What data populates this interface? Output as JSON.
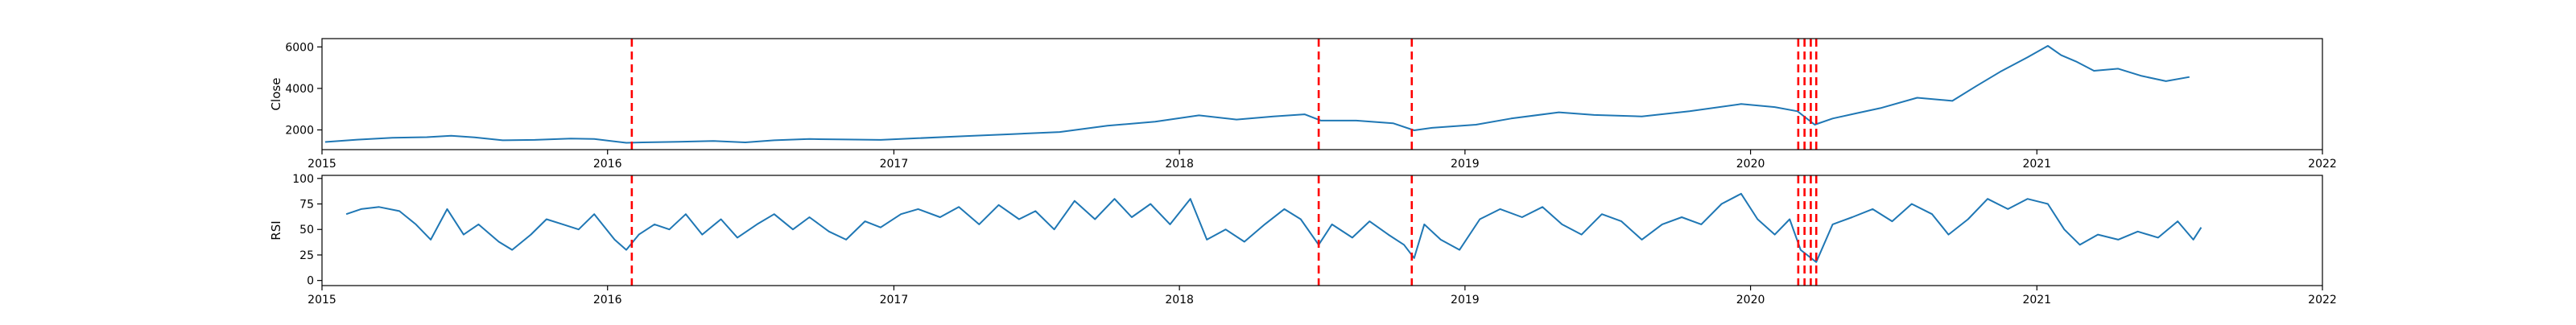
{
  "chart_data": [
    {
      "type": "line",
      "ylabel": "Close",
      "xlim": [
        "2015-01-01",
        "2022-01-01"
      ],
      "ylim": [
        1050,
        6400
      ],
      "x_ticks": [
        "2015-01-01",
        "2016-01-01",
        "2017-01-01",
        "2018-01-01",
        "2019-01-01",
        "2020-01-01",
        "2021-01-01",
        "2022-01-01"
      ],
      "x_tick_labels": [
        "2015",
        "2016",
        "2017",
        "2018",
        "2019",
        "2020",
        "2021",
        "2022"
      ],
      "y_ticks": [
        2000,
        4000,
        6000
      ],
      "y_tick_labels": [
        "2000",
        "4000",
        "6000"
      ],
      "grid": false,
      "series": [
        {
          "color": "#1f77b4",
          "points": [
            [
              "2015-01-05",
              1420
            ],
            [
              "2015-02-15",
              1530
            ],
            [
              "2015-04-01",
              1620
            ],
            [
              "2015-05-15",
              1650
            ],
            [
              "2015-06-15",
              1720
            ],
            [
              "2015-07-15",
              1640
            ],
            [
              "2015-08-20",
              1500
            ],
            [
              "2015-09-30",
              1520
            ],
            [
              "2015-11-15",
              1580
            ],
            [
              "2015-12-15",
              1560
            ],
            [
              "2016-01-25",
              1380
            ],
            [
              "2016-02-15",
              1400
            ],
            [
              "2016-04-01",
              1430
            ],
            [
              "2016-05-15",
              1470
            ],
            [
              "2016-06-25",
              1400
            ],
            [
              "2016-08-01",
              1500
            ],
            [
              "2016-09-15",
              1560
            ],
            [
              "2016-11-01",
              1540
            ],
            [
              "2016-12-15",
              1520
            ],
            [
              "2017-02-01",
              1600
            ],
            [
              "2017-04-01",
              1700
            ],
            [
              "2017-06-01",
              1800
            ],
            [
              "2017-08-01",
              1900
            ],
            [
              "2017-10-01",
              2200
            ],
            [
              "2017-12-01",
              2400
            ],
            [
              "2018-01-26",
              2700
            ],
            [
              "2018-03-15",
              2500
            ],
            [
              "2018-05-01",
              2650
            ],
            [
              "2018-06-10",
              2750
            ],
            [
              "2018-07-01",
              2450
            ],
            [
              "2018-08-15",
              2450
            ],
            [
              "2018-10-01",
              2320
            ],
            [
              "2018-10-28",
              1980
            ],
            [
              "2018-11-20",
              2100
            ],
            [
              "2019-01-15",
              2250
            ],
            [
              "2019-03-01",
              2550
            ],
            [
              "2019-05-01",
              2850
            ],
            [
              "2019-06-15",
              2720
            ],
            [
              "2019-08-15",
              2650
            ],
            [
              "2019-10-15",
              2900
            ],
            [
              "2019-12-20",
              3250
            ],
            [
              "2020-02-01",
              3100
            ],
            [
              "2020-03-01",
              2900
            ],
            [
              "2020-03-23",
              2250
            ],
            [
              "2020-04-15",
              2550
            ],
            [
              "2020-05-15",
              2800
            ],
            [
              "2020-06-15",
              3050
            ],
            [
              "2020-08-01",
              3550
            ],
            [
              "2020-09-15",
              3400
            ],
            [
              "2020-10-15",
              4100
            ],
            [
              "2020-11-15",
              4800
            ],
            [
              "2020-12-20",
              5500
            ],
            [
              "2021-01-15",
              6050
            ],
            [
              "2021-02-01",
              5600
            ],
            [
              "2021-02-20",
              5300
            ],
            [
              "2021-03-15",
              4850
            ],
            [
              "2021-04-15",
              4950
            ],
            [
              "2021-05-15",
              4600
            ],
            [
              "2021-06-15",
              4350
            ],
            [
              "2021-07-15",
              4550
            ]
          ]
        }
      ],
      "vlines": {
        "color": "#ff0000",
        "dates": [
          "2016-02-01",
          "2018-06-28",
          "2018-10-25",
          "2020-03-02",
          "2020-03-10",
          "2020-03-18",
          "2020-03-25"
        ]
      }
    },
    {
      "type": "line",
      "ylabel": "RSI",
      "xlim": [
        "2015-01-01",
        "2022-01-01"
      ],
      "ylim": [
        -5,
        103
      ],
      "x_ticks": [
        "2015-01-01",
        "2016-01-01",
        "2017-01-01",
        "2018-01-01",
        "2019-01-01",
        "2020-01-01",
        "2021-01-01",
        "2022-01-01"
      ],
      "x_tick_labels": [
        "2015",
        "2016",
        "2017",
        "2018",
        "2019",
        "2020",
        "2021",
        "2022"
      ],
      "y_ticks": [
        0,
        25,
        50,
        75,
        100
      ],
      "y_tick_labels": [
        "0",
        "25",
        "50",
        "75",
        "100"
      ],
      "grid": false,
      "series": [
        {
          "color": "#1f77b4",
          "points": [
            [
              "2015-02-01",
              65
            ],
            [
              "2015-02-20",
              70
            ],
            [
              "2015-03-15",
              72
            ],
            [
              "2015-04-10",
              68
            ],
            [
              "2015-05-01",
              55
            ],
            [
              "2015-05-20",
              40
            ],
            [
              "2015-06-10",
              70
            ],
            [
              "2015-07-01",
              45
            ],
            [
              "2015-07-20",
              55
            ],
            [
              "2015-08-15",
              38
            ],
            [
              "2015-09-01",
              30
            ],
            [
              "2015-09-25",
              45
            ],
            [
              "2015-10-15",
              60
            ],
            [
              "2015-11-05",
              55
            ],
            [
              "2015-11-25",
              50
            ],
            [
              "2015-12-15",
              65
            ],
            [
              "2016-01-10",
              40
            ],
            [
              "2016-01-25",
              30
            ],
            [
              "2016-02-10",
              45
            ],
            [
              "2016-03-01",
              55
            ],
            [
              "2016-03-20",
              50
            ],
            [
              "2016-04-10",
              65
            ],
            [
              "2016-05-01",
              45
            ],
            [
              "2016-05-25",
              60
            ],
            [
              "2016-06-15",
              42
            ],
            [
              "2016-07-10",
              55
            ],
            [
              "2016-08-01",
              65
            ],
            [
              "2016-08-25",
              50
            ],
            [
              "2016-09-15",
              62
            ],
            [
              "2016-10-10",
              48
            ],
            [
              "2016-11-01",
              40
            ],
            [
              "2016-11-25",
              58
            ],
            [
              "2016-12-15",
              52
            ],
            [
              "2017-01-10",
              65
            ],
            [
              "2017-02-01",
              70
            ],
            [
              "2017-03-01",
              62
            ],
            [
              "2017-03-25",
              72
            ],
            [
              "2017-04-20",
              55
            ],
            [
              "2017-05-15",
              74
            ],
            [
              "2017-06-10",
              60
            ],
            [
              "2017-07-01",
              68
            ],
            [
              "2017-07-25",
              50
            ],
            [
              "2017-08-20",
              78
            ],
            [
              "2017-09-15",
              60
            ],
            [
              "2017-10-10",
              80
            ],
            [
              "2017-11-01",
              62
            ],
            [
              "2017-11-25",
              75
            ],
            [
              "2017-12-20",
              55
            ],
            [
              "2018-01-15",
              80
            ],
            [
              "2018-02-05",
              40
            ],
            [
              "2018-03-01",
              50
            ],
            [
              "2018-03-25",
              38
            ],
            [
              "2018-04-20",
              55
            ],
            [
              "2018-05-15",
              70
            ],
            [
              "2018-06-05",
              60
            ],
            [
              "2018-06-28",
              35
            ],
            [
              "2018-07-15",
              55
            ],
            [
              "2018-08-10",
              42
            ],
            [
              "2018-09-01",
              58
            ],
            [
              "2018-09-25",
              45
            ],
            [
              "2018-10-15",
              35
            ],
            [
              "2018-10-28",
              22
            ],
            [
              "2018-11-10",
              55
            ],
            [
              "2018-12-01",
              40
            ],
            [
              "2018-12-25",
              30
            ],
            [
              "2019-01-20",
              60
            ],
            [
              "2019-02-15",
              70
            ],
            [
              "2019-03-15",
              62
            ],
            [
              "2019-04-10",
              72
            ],
            [
              "2019-05-05",
              55
            ],
            [
              "2019-05-30",
              45
            ],
            [
              "2019-06-25",
              65
            ],
            [
              "2019-07-20",
              58
            ],
            [
              "2019-08-15",
              40
            ],
            [
              "2019-09-10",
              55
            ],
            [
              "2019-10-05",
              62
            ],
            [
              "2019-10-30",
              55
            ],
            [
              "2019-11-25",
              75
            ],
            [
              "2019-12-20",
              85
            ],
            [
              "2020-01-10",
              60
            ],
            [
              "2020-02-01",
              45
            ],
            [
              "2020-02-20",
              60
            ],
            [
              "2020-03-05",
              30
            ],
            [
              "2020-03-25",
              18
            ],
            [
              "2020-04-15",
              55
            ],
            [
              "2020-05-10",
              62
            ],
            [
              "2020-06-05",
              70
            ],
            [
              "2020-06-30",
              58
            ],
            [
              "2020-07-25",
              75
            ],
            [
              "2020-08-20",
              65
            ],
            [
              "2020-09-10",
              45
            ],
            [
              "2020-10-05",
              60
            ],
            [
              "2020-10-30",
              80
            ],
            [
              "2020-11-25",
              70
            ],
            [
              "2020-12-20",
              80
            ],
            [
              "2021-01-15",
              75
            ],
            [
              "2021-02-05",
              50
            ],
            [
              "2021-02-25",
              35
            ],
            [
              "2021-03-20",
              45
            ],
            [
              "2021-04-15",
              40
            ],
            [
              "2021-05-10",
              48
            ],
            [
              "2021-06-05",
              42
            ],
            [
              "2021-06-30",
              58
            ],
            [
              "2021-07-20",
              40
            ],
            [
              "2021-07-30",
              52
            ]
          ]
        }
      ],
      "vlines": {
        "color": "#ff0000",
        "dates": [
          "2016-02-01",
          "2018-06-28",
          "2018-10-25",
          "2020-03-02",
          "2020-03-10",
          "2020-03-18",
          "2020-03-25"
        ]
      }
    }
  ]
}
